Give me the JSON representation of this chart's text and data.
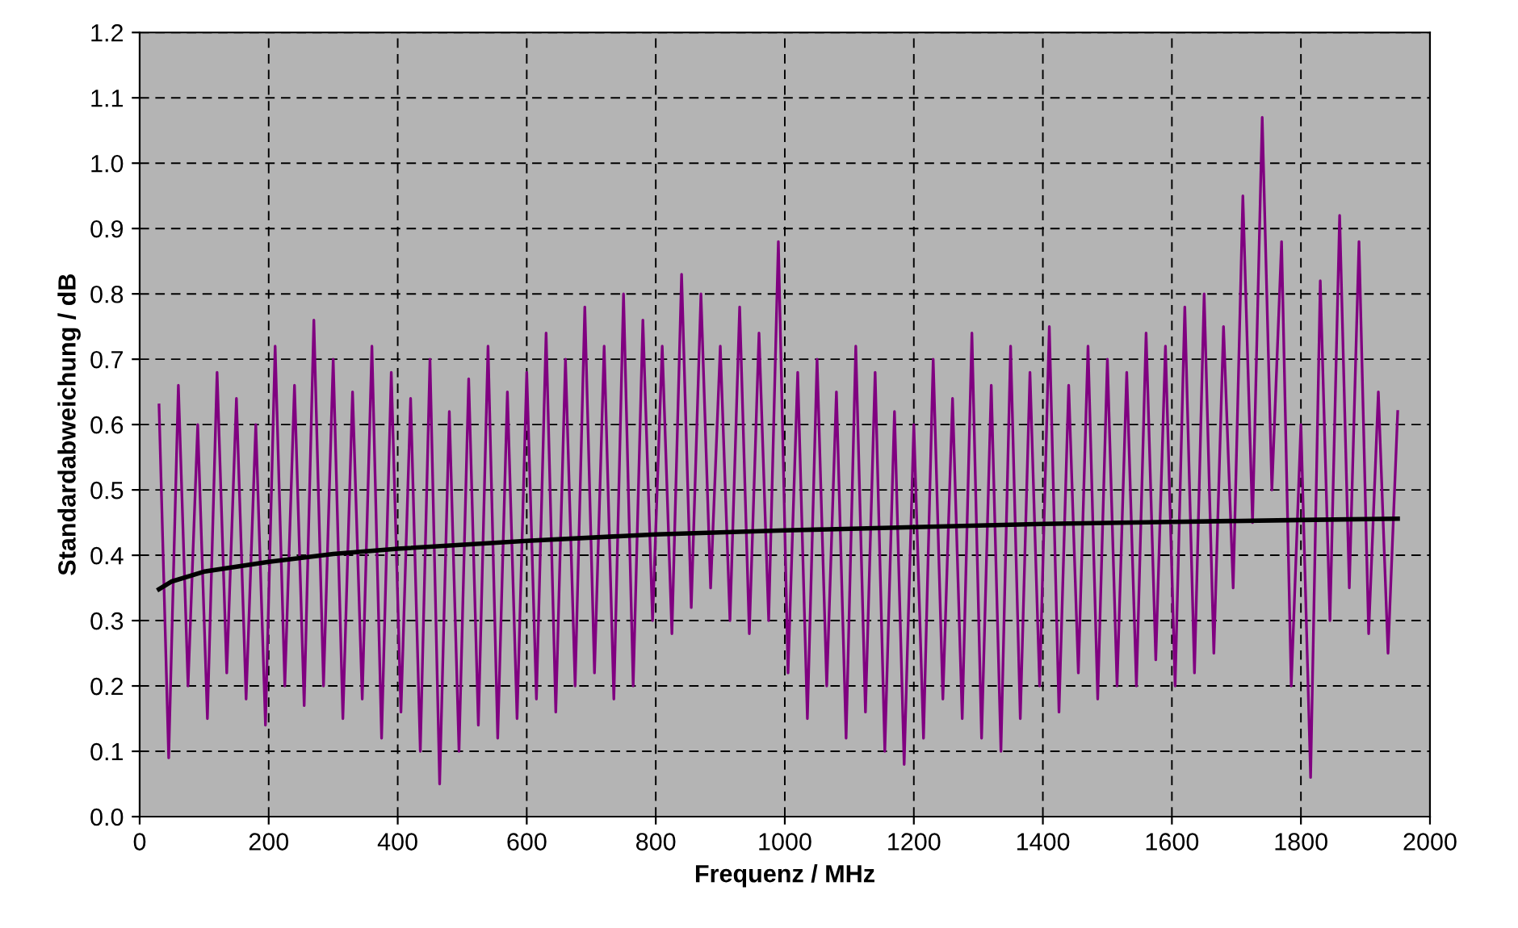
{
  "chart_data": {
    "type": "line",
    "xlabel": "Frequenz / MHz",
    "ylabel": "Standardabweichung / dB",
    "series": [
      {
        "color": "#800080",
        "x": [
          30,
          45,
          60,
          75,
          90,
          105,
          120,
          135,
          150,
          165,
          180,
          195,
          210,
          225,
          240,
          255,
          270,
          285,
          300,
          315,
          330,
          345,
          360,
          375,
          390,
          405,
          420,
          435,
          450,
          465,
          480,
          495,
          510,
          525,
          540,
          555,
          570,
          585,
          600,
          615,
          630,
          645,
          660,
          675,
          690,
          705,
          720,
          735,
          750,
          765,
          780,
          795,
          810,
          825,
          840,
          855,
          870,
          885,
          900,
          915,
          930,
          945,
          960,
          975,
          990,
          1005,
          1020,
          1035,
          1050,
          1065,
          1080,
          1095,
          1110,
          1125,
          1140,
          1155,
          1170,
          1185,
          1200,
          1215,
          1230,
          1245,
          1260,
          1275,
          1290,
          1305,
          1320,
          1335,
          1350,
          1365,
          1380,
          1395,
          1410,
          1425,
          1440,
          1455,
          1470,
          1485,
          1500,
          1515,
          1530,
          1545,
          1560,
          1575,
          1590,
          1605,
          1620,
          1635,
          1650,
          1665,
          1680,
          1695,
          1710,
          1725,
          1740,
          1755,
          1770,
          1785,
          1800,
          1815,
          1830,
          1845,
          1860,
          1875,
          1890,
          1905,
          1920,
          1935,
          1950
        ],
        "values": [
          0.63,
          0.09,
          0.66,
          0.2,
          0.6,
          0.15,
          0.68,
          0.22,
          0.64,
          0.18,
          0.6,
          0.14,
          0.72,
          0.2,
          0.66,
          0.17,
          0.76,
          0.2,
          0.7,
          0.15,
          0.65,
          0.18,
          0.72,
          0.12,
          0.68,
          0.16,
          0.64,
          0.1,
          0.7,
          0.05,
          0.62,
          0.1,
          0.67,
          0.14,
          0.72,
          0.12,
          0.65,
          0.15,
          0.68,
          0.18,
          0.74,
          0.16,
          0.7,
          0.2,
          0.78,
          0.22,
          0.72,
          0.18,
          0.8,
          0.2,
          0.76,
          0.3,
          0.72,
          0.28,
          0.83,
          0.32,
          0.8,
          0.35,
          0.72,
          0.3,
          0.78,
          0.28,
          0.74,
          0.3,
          0.88,
          0.22,
          0.68,
          0.15,
          0.7,
          0.2,
          0.65,
          0.12,
          0.72,
          0.16,
          0.68,
          0.1,
          0.62,
          0.08,
          0.6,
          0.12,
          0.7,
          0.18,
          0.64,
          0.15,
          0.74,
          0.12,
          0.66,
          0.1,
          0.72,
          0.15,
          0.68,
          0.2,
          0.75,
          0.16,
          0.66,
          0.22,
          0.72,
          0.18,
          0.7,
          0.2,
          0.68,
          0.2,
          0.74,
          0.24,
          0.72,
          0.2,
          0.78,
          0.22,
          0.8,
          0.25,
          0.75,
          0.35,
          0.95,
          0.45,
          1.07,
          0.5,
          0.88,
          0.2,
          0.6,
          0.06,
          0.82,
          0.3,
          0.92,
          0.35,
          0.88,
          0.28,
          0.65,
          0.25,
          0.62
        ]
      },
      {
        "color": "#000000",
        "x": [
          30,
          50,
          100,
          200,
          300,
          400,
          600,
          800,
          1000,
          1200,
          1400,
          1600,
          1800,
          1950
        ],
        "values": [
          0.348,
          0.36,
          0.375,
          0.39,
          0.402,
          0.41,
          0.422,
          0.432,
          0.438,
          0.443,
          0.448,
          0.451,
          0.454,
          0.456
        ]
      }
    ],
    "xlim": [
      0,
      2000
    ],
    "xticks": [
      0,
      200,
      400,
      600,
      800,
      1000,
      1200,
      1400,
      1600,
      1800,
      2000
    ],
    "ylim": [
      0,
      1.2
    ],
    "yticks": [
      {
        "value": 0,
        "label": "0.0"
      },
      {
        "value": 0.1,
        "label": "0.1"
      },
      {
        "value": 0.2,
        "label": "0.2"
      },
      {
        "value": 0.3,
        "label": "0.3"
      },
      {
        "value": 0.4,
        "label": "0.4"
      },
      {
        "value": 0.5,
        "label": "0.5"
      },
      {
        "value": 0.6,
        "label": "0.6"
      },
      {
        "value": 0.7,
        "label": "0.7"
      },
      {
        "value": 0.8,
        "label": "0.8"
      },
      {
        "value": 0.9,
        "label": "0.9"
      },
      {
        "value": 1.0,
        "label": "1.0"
      },
      {
        "value": 1.1,
        "label": "1.1"
      },
      {
        "value": 1.2,
        "label": "1.2"
      }
    ],
    "grid": true
  }
}
